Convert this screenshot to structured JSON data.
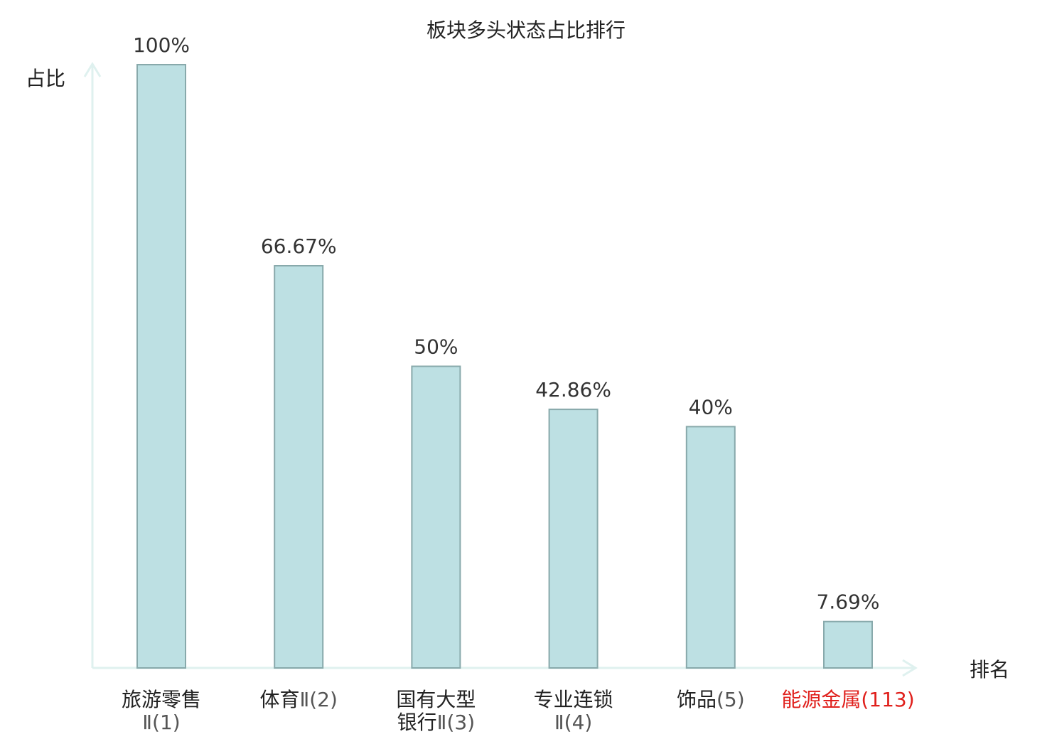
{
  "chart_data": {
    "type": "bar",
    "title": "板块多头状态占比排行",
    "xlabel": "排名",
    "ylabel": "占比",
    "ylim": [
      0,
      100
    ],
    "grid": false,
    "categories": [
      {
        "name": "旅游零售",
        "suffix": "Ⅱ(1)",
        "lines": [
          [
            "旅游零售",
            ""
          ],
          [
            "",
            "Ⅱ(1)"
          ]
        ],
        "highlight": false
      },
      {
        "name": "体育",
        "suffix": "Ⅱ(2)",
        "lines": [
          [
            "体育",
            "Ⅱ(2)"
          ]
        ],
        "highlight": false
      },
      {
        "name": "国有大型银行",
        "suffix": "Ⅱ(3)",
        "lines": [
          [
            "国有大型",
            ""
          ],
          [
            "银行",
            "Ⅱ(3)"
          ]
        ],
        "highlight": false
      },
      {
        "name": "专业连锁",
        "suffix": "Ⅱ(4)",
        "lines": [
          [
            "专业连锁",
            ""
          ],
          [
            "",
            "Ⅱ(4)"
          ]
        ],
        "highlight": false
      },
      {
        "name": "饰品",
        "suffix": "(5)",
        "lines": [
          [
            "饰品",
            "(5)"
          ]
        ],
        "highlight": false
      },
      {
        "name": "能源金属",
        "suffix": "(113)",
        "lines": [
          [
            "能源金属",
            "(113)"
          ]
        ],
        "highlight": true
      }
    ],
    "values": [
      100,
      66.67,
      50,
      42.86,
      40,
      7.69
    ],
    "value_labels": [
      "100%",
      "66.67%",
      "50%",
      "42.86%",
      "40%",
      "7.69%"
    ],
    "colors": {
      "bar_fill": "#bde0e3",
      "bar_stroke": "#88a9ab",
      "axis": "#dff1ef",
      "text": "#222222",
      "suffix": "#555555",
      "highlight": "#e0201c"
    }
  }
}
